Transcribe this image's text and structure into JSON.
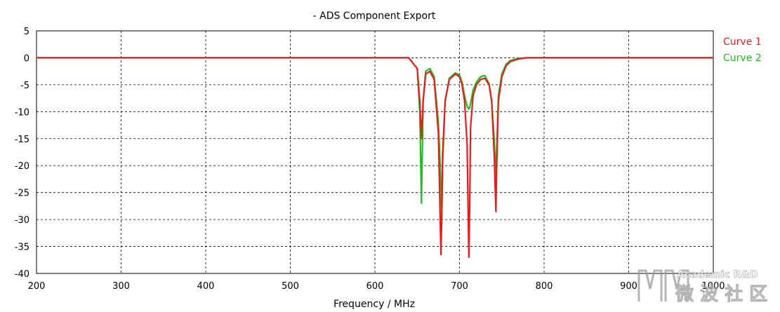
{
  "chart_data": {
    "type": "line",
    "title": "- ADS Component Export",
    "xlabel": "Frequency / MHz",
    "ylabel": "",
    "xlim": [
      200,
      1000
    ],
    "ylim": [
      -40,
      5
    ],
    "xticks": [
      200,
      300,
      400,
      500,
      600,
      700,
      800,
      900,
      1000
    ],
    "yticks": [
      5,
      0,
      -5,
      -10,
      -15,
      -20,
      -25,
      -30,
      -35,
      -40
    ],
    "grid": true,
    "legend_position": "right",
    "series": [
      {
        "name": "Curve 1",
        "color": "#e81c1c",
        "x": [
          200,
          640,
          650,
          653,
          655,
          657,
          660,
          665,
          670,
          675,
          678,
          679,
          680,
          683,
          688,
          695,
          700,
          703,
          706,
          709,
          711,
          712,
          713,
          716,
          720,
          725,
          730,
          735,
          738,
          741,
          743,
          744,
          746,
          750,
          755,
          760,
          770,
          780,
          1000
        ],
        "y": [
          0,
          0,
          -2,
          -8,
          -15,
          -8,
          -3,
          -2.5,
          -4,
          -14,
          -36.5,
          -30,
          -18,
          -8,
          -4,
          -3,
          -3.5,
          -5,
          -8,
          -16,
          -37,
          -28,
          -13,
          -7,
          -5,
          -4,
          -3.8,
          -5,
          -8,
          -18,
          -28.5,
          -20,
          -8,
          -3.5,
          -1.5,
          -0.7,
          -0.2,
          0,
          0
        ]
      },
      {
        "name": "Curve 2",
        "color": "#1ebe1e",
        "x": [
          200,
          640,
          650,
          653,
          655,
          657,
          660,
          665,
          670,
          675,
          678,
          679,
          680,
          683,
          688,
          695,
          700,
          703,
          706,
          709,
          711,
          712,
          713,
          716,
          720,
          725,
          730,
          735,
          738,
          741,
          743,
          744,
          746,
          750,
          755,
          760,
          770,
          780,
          1000
        ],
        "y": [
          0,
          0,
          -2,
          -10,
          -27,
          -8,
          -2.5,
          -2,
          -3.5,
          -12,
          -23,
          -30,
          -20,
          -8,
          -3.8,
          -2.8,
          -3.2,
          -4.5,
          -7,
          -9,
          -9.5,
          -9.2,
          -8.5,
          -6,
          -4.5,
          -3.5,
          -3.3,
          -4.8,
          -8,
          -15,
          -22,
          -17,
          -7,
          -3,
          -1.2,
          -0.5,
          -0.1,
          0,
          0
        ]
      }
    ]
  },
  "watermark": {
    "line1": "Academic R&D",
    "line2": "微 波 社 区"
  }
}
